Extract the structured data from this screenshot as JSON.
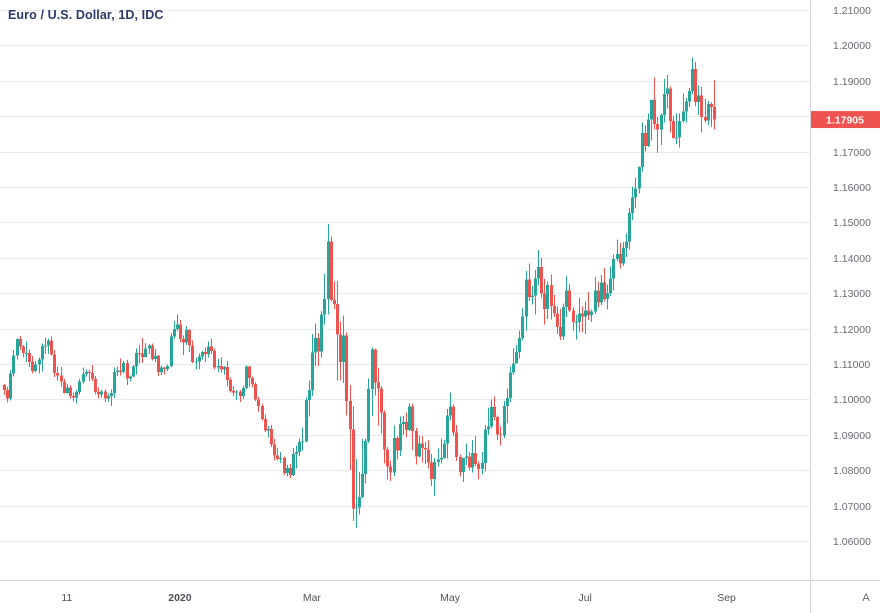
{
  "chart_data": {
    "type": "candlestick",
    "symbol_title": "Euro / U.S. Dollar, 1D, IDC",
    "symbol": "EURUSD",
    "interval": "1D",
    "exchange": "IDC",
    "last_price": "1.17905",
    "corner_label": "A",
    "price_axis_labels": [
      "1.21000",
      "1.20000",
      "1.19000",
      "1.18000",
      "1.17000",
      "1.16000",
      "1.15000",
      "1.14000",
      "1.13000",
      "1.12000",
      "1.11000",
      "1.10000",
      "1.09000",
      "1.08000",
      "1.07000",
      "1.06000"
    ],
    "ylim": [
      1.04898,
      1.21282
    ],
    "time_ticks": [
      {
        "label": "11",
        "index": 20,
        "bold": false
      },
      {
        "label": "2020",
        "index": 56,
        "bold": true
      },
      {
        "label": "Mar",
        "index": 98,
        "bold": false
      },
      {
        "label": "May",
        "index": 142,
        "bold": false
      },
      {
        "label": "Jul",
        "index": 185,
        "bold": false
      },
      {
        "label": "Sep",
        "index": 230,
        "bold": false
      }
    ],
    "colors": {
      "up": "#26a69a",
      "down": "#ef5350",
      "badge": "#ef5350",
      "badge_text": "#ffffff",
      "grid": "#e7eaf0",
      "axis_border": "#d3d6dd",
      "axis_text": "#676b74",
      "time_text": "#50535a",
      "legend": "#2c3a6b",
      "background": "#ffffff"
    },
    "candles": [
      [
        1.104,
        1.1043,
        1.1013,
        1.1026
      ],
      [
        1.1026,
        1.1035,
        1.0991,
        1.1003
      ],
      [
        1.1003,
        1.1083,
        1.0997,
        1.1073
      ],
      [
        1.1073,
        1.114,
        1.1065,
        1.1124
      ],
      [
        1.1124,
        1.1172,
        1.1112,
        1.117
      ],
      [
        1.117,
        1.1179,
        1.1139,
        1.115
      ],
      [
        1.115,
        1.1154,
        1.1118,
        1.1131
      ],
      [
        1.1131,
        1.1163,
        1.1106,
        1.1131
      ],
      [
        1.1131,
        1.1141,
        1.1092,
        1.1105
      ],
      [
        1.1105,
        1.1123,
        1.1073,
        1.108
      ],
      [
        1.108,
        1.1108,
        1.1076,
        1.1099
      ],
      [
        1.1099,
        1.1118,
        1.1073,
        1.1113
      ],
      [
        1.1113,
        1.1158,
        1.1079,
        1.1151
      ],
      [
        1.1151,
        1.1175,
        1.1128,
        1.1152
      ],
      [
        1.1152,
        1.1172,
        1.1128,
        1.1166
      ],
      [
        1.1166,
        1.1177,
        1.1124,
        1.1127
      ],
      [
        1.1127,
        1.114,
        1.1063,
        1.1074
      ],
      [
        1.1074,
        1.1093,
        1.1054,
        1.1068
      ],
      [
        1.1068,
        1.1092,
        1.1035,
        1.105
      ],
      [
        1.105,
        1.1058,
        1.1017,
        1.1018
      ],
      [
        1.1018,
        1.1043,
        1.1016,
        1.1033
      ],
      [
        1.1033,
        1.104,
        1.1002,
        1.101
      ],
      [
        1.101,
        1.1019,
        1.0994,
        1.1006
      ],
      [
        1.1006,
        1.1027,
        1.0989,
        1.1021
      ],
      [
        1.1021,
        1.1057,
        1.1014,
        1.1051
      ],
      [
        1.1051,
        1.109,
        1.1045,
        1.1072
      ],
      [
        1.1072,
        1.1085,
        1.1064,
        1.1078
      ],
      [
        1.1078,
        1.1083,
        1.1052,
        1.1074
      ],
      [
        1.1074,
        1.1097,
        1.1052,
        1.1058
      ],
      [
        1.1058,
        1.1066,
        1.1014,
        1.1021
      ],
      [
        1.1021,
        1.1033,
        1.1003,
        1.1014
      ],
      [
        1.1014,
        1.1026,
        1.1006,
        1.1022
      ],
      [
        1.1022,
        1.1028,
        1.0992,
        1.1003
      ],
      [
        1.1003,
        1.1016,
        1.0994,
        1.1009
      ],
      [
        1.1009,
        1.1028,
        1.0981,
        1.1018
      ],
      [
        1.1018,
        1.109,
        1.1004,
        1.1078
      ],
      [
        1.1078,
        1.1093,
        1.1066,
        1.1081
      ],
      [
        1.1081,
        1.1116,
        1.1067,
        1.1077
      ],
      [
        1.1077,
        1.1109,
        1.1073,
        1.1103
      ],
      [
        1.1103,
        1.1111,
        1.104,
        1.1059
      ],
      [
        1.1059,
        1.1068,
        1.1051,
        1.1064
      ],
      [
        1.1064,
        1.1097,
        1.1063,
        1.1093
      ],
      [
        1.1093,
        1.1144,
        1.107,
        1.1131
      ],
      [
        1.1131,
        1.1154,
        1.1102,
        1.113
      ],
      [
        1.113,
        1.1173,
        1.1103,
        1.112
      ],
      [
        1.112,
        1.1159,
        1.1118,
        1.1144
      ],
      [
        1.1144,
        1.1156,
        1.1128,
        1.1152
      ],
      [
        1.1152,
        1.1158,
        1.111,
        1.1114
      ],
      [
        1.1114,
        1.1143,
        1.1106,
        1.1122
      ],
      [
        1.1122,
        1.1126,
        1.1066,
        1.1078
      ],
      [
        1.1078,
        1.1096,
        1.1069,
        1.109
      ],
      [
        1.109,
        1.1092,
        1.107,
        1.1086
      ],
      [
        1.1086,
        1.1098,
        1.108,
        1.1094
      ],
      [
        1.1094,
        1.1188,
        1.1092,
        1.1177
      ],
      [
        1.1177,
        1.1221,
        1.1172,
        1.1199
      ],
      [
        1.1199,
        1.124,
        1.1193,
        1.1212
      ],
      [
        1.1212,
        1.1224,
        1.1162,
        1.1171
      ],
      [
        1.1171,
        1.118,
        1.1125,
        1.116
      ],
      [
        1.116,
        1.1207,
        1.1154,
        1.1196
      ],
      [
        1.1196,
        1.1199,
        1.1134,
        1.1152
      ],
      [
        1.1152,
        1.1166,
        1.1103,
        1.1105
      ],
      [
        1.1105,
        1.1119,
        1.1085,
        1.1107
      ],
      [
        1.1107,
        1.1129,
        1.1086,
        1.1121
      ],
      [
        1.1121,
        1.1136,
        1.1113,
        1.1134
      ],
      [
        1.1134,
        1.1146,
        1.1105,
        1.1128
      ],
      [
        1.1128,
        1.1163,
        1.1119,
        1.115
      ],
      [
        1.115,
        1.1172,
        1.1128,
        1.1136
      ],
      [
        1.1136,
        1.1144,
        1.1085,
        1.109
      ],
      [
        1.109,
        1.1114,
        1.1077,
        1.1095
      ],
      [
        1.1095,
        1.1118,
        1.1076,
        1.1084
      ],
      [
        1.1084,
        1.1095,
        1.1069,
        1.1092
      ],
      [
        1.1092,
        1.1109,
        1.1036,
        1.1055
      ],
      [
        1.1055,
        1.1062,
        1.102,
        1.1024
      ],
      [
        1.1024,
        1.1038,
        1.101,
        1.1019
      ],
      [
        1.1019,
        1.1026,
        1.0998,
        1.1022
      ],
      [
        1.1022,
        1.1027,
        1.0992,
        1.101
      ],
      [
        1.101,
        1.1039,
        1.1001,
        1.1032
      ],
      [
        1.1032,
        1.1096,
        1.103,
        1.1093
      ],
      [
        1.1093,
        1.1094,
        1.1035,
        1.106
      ],
      [
        1.106,
        1.1065,
        1.1033,
        1.1044
      ],
      [
        1.1044,
        1.1048,
        1.0995,
        1.1
      ],
      [
        1.1,
        1.1007,
        1.0964,
        1.0981
      ],
      [
        1.0981,
        1.0988,
        1.0941,
        1.0945
      ],
      [
        1.0945,
        1.0958,
        1.0908,
        1.0912
      ],
      [
        1.0912,
        1.0925,
        1.0892,
        1.0917
      ],
      [
        1.0917,
        1.0927,
        1.0865,
        1.0873
      ],
      [
        1.0873,
        1.0888,
        1.0827,
        1.0841
      ],
      [
        1.0841,
        1.0862,
        1.0828,
        1.0831
      ],
      [
        1.0831,
        1.0852,
        1.082,
        1.0835
      ],
      [
        1.0835,
        1.0839,
        1.0786,
        1.0792
      ],
      [
        1.0792,
        1.0815,
        1.0782,
        1.0806
      ],
      [
        1.0806,
        1.0818,
        1.0778,
        1.0786
      ],
      [
        1.0786,
        1.0862,
        1.0783,
        1.0846
      ],
      [
        1.0846,
        1.087,
        1.0805,
        1.0852
      ],
      [
        1.0852,
        1.089,
        1.084,
        1.088
      ],
      [
        1.088,
        1.092,
        1.0855,
        1.0881
      ],
      [
        1.0881,
        1.1006,
        1.0878,
        1.0998
      ],
      [
        1.0998,
        1.1053,
        1.0951,
        1.1026
      ],
      [
        1.1026,
        1.1185,
        1.101,
        1.1133
      ],
      [
        1.1133,
        1.1214,
        1.1095,
        1.1173
      ],
      [
        1.1173,
        1.1187,
        1.1095,
        1.1135
      ],
      [
        1.1135,
        1.1249,
        1.1119,
        1.124
      ],
      [
        1.124,
        1.1355,
        1.1212,
        1.1284
      ],
      [
        1.1284,
        1.1495,
        1.124,
        1.1446
      ],
      [
        1.1446,
        1.146,
        1.1277,
        1.1281
      ],
      [
        1.1281,
        1.1333,
        1.1256,
        1.127
      ],
      [
        1.127,
        1.1334,
        1.1054,
        1.1184
      ],
      [
        1.1184,
        1.122,
        1.1054,
        1.1105
      ],
      [
        1.1105,
        1.1237,
        1.1046,
        1.118
      ],
      [
        1.118,
        1.1189,
        1.0955,
        1.0995
      ],
      [
        1.0995,
        1.104,
        1.0801,
        1.0915
      ],
      [
        1.0915,
        1.0982,
        1.0656,
        1.0692
      ],
      [
        1.0692,
        1.0831,
        1.0636,
        1.0695
      ],
      [
        1.0695,
        1.0795,
        1.0675,
        1.0724
      ],
      [
        1.0724,
        1.0888,
        1.0722,
        1.0789
      ],
      [
        1.0789,
        1.089,
        1.0762,
        1.0883
      ],
      [
        1.0883,
        1.1059,
        1.0877,
        1.103
      ],
      [
        1.103,
        1.1147,
        1.0953,
        1.1141
      ],
      [
        1.1141,
        1.1144,
        1.1011,
        1.1047
      ],
      [
        1.1047,
        1.1088,
        1.0926,
        1.1031
      ],
      [
        1.1031,
        1.1038,
        1.0903,
        1.0963
      ],
      [
        1.0963,
        1.0968,
        1.0819,
        1.0858
      ],
      [
        1.0858,
        1.0865,
        1.0773,
        1.081
      ],
      [
        1.081,
        1.0827,
        1.0769,
        1.0793
      ],
      [
        1.0793,
        1.0926,
        1.0784,
        1.0891
      ],
      [
        1.0891,
        1.0897,
        1.083,
        1.0856
      ],
      [
        1.0856,
        1.0952,
        1.084,
        1.093
      ],
      [
        1.093,
        1.0953,
        1.0899,
        1.0936
      ],
      [
        1.0936,
        1.0963,
        1.0893,
        1.0914
      ],
      [
        1.0914,
        1.099,
        1.0911,
        1.098
      ],
      [
        1.098,
        1.0988,
        1.0857,
        1.0911
      ],
      [
        1.0911,
        1.0919,
        1.0816,
        1.0838
      ],
      [
        1.0838,
        1.0898,
        1.0836,
        1.0875
      ],
      [
        1.0875,
        1.0897,
        1.0822,
        1.0863
      ],
      [
        1.0863,
        1.0879,
        1.0817,
        1.0858
      ],
      [
        1.0858,
        1.0885,
        1.0805,
        1.0822
      ],
      [
        1.0822,
        1.0846,
        1.0756,
        1.0775
      ],
      [
        1.0775,
        1.0835,
        1.0727,
        1.0823
      ],
      [
        1.0823,
        1.0861,
        1.081,
        1.083
      ],
      [
        1.083,
        1.0889,
        1.0819,
        1.0834
      ],
      [
        1.0834,
        1.0885,
        1.0833,
        1.0875
      ],
      [
        1.0875,
        1.0973,
        1.0833,
        1.0955
      ],
      [
        1.0955,
        1.1019,
        1.094,
        1.098
      ],
      [
        1.098,
        1.0985,
        1.0896,
        1.0907
      ],
      [
        1.0907,
        1.0927,
        1.0826,
        1.0837
      ],
      [
        1.0837,
        1.0845,
        1.0782,
        1.0795
      ],
      [
        1.0795,
        1.0835,
        1.0766,
        1.0834
      ],
      [
        1.0834,
        1.0876,
        1.0815,
        1.0839
      ],
      [
        1.0839,
        1.0851,
        1.08,
        1.0807
      ],
      [
        1.0807,
        1.0885,
        1.0794,
        1.0849
      ],
      [
        1.0849,
        1.0897,
        1.0812,
        1.0817
      ],
      [
        1.0817,
        1.0824,
        1.0774,
        1.0803
      ],
      [
        1.0803,
        1.0851,
        1.0789,
        1.082
      ],
      [
        1.082,
        1.0927,
        1.0797,
        1.0915
      ],
      [
        1.0915,
        1.0976,
        1.0899,
        1.0924
      ],
      [
        1.0924,
        1.0999,
        1.0918,
        1.0978
      ],
      [
        1.0978,
        1.1008,
        1.094,
        1.095
      ],
      [
        1.095,
        1.0955,
        1.0885,
        1.0901
      ],
      [
        1.0901,
        1.0924,
        1.087,
        1.0898
      ],
      [
        1.0898,
        1.0996,
        1.0891,
        1.0982
      ],
      [
        1.0982,
        1.1031,
        1.0934,
        1.1004
      ],
      [
        1.1004,
        1.1093,
        1.0992,
        1.1076
      ],
      [
        1.1076,
        1.1145,
        1.1069,
        1.1101
      ],
      [
        1.1101,
        1.1154,
        1.1101,
        1.1134
      ],
      [
        1.1134,
        1.1195,
        1.1115,
        1.1173
      ],
      [
        1.1173,
        1.1258,
        1.1167,
        1.1234
      ],
      [
        1.1234,
        1.1362,
        1.1194,
        1.1338
      ],
      [
        1.1338,
        1.1384,
        1.1278,
        1.1289
      ],
      [
        1.1289,
        1.132,
        1.1268,
        1.1294
      ],
      [
        1.1294,
        1.1366,
        1.124,
        1.1341
      ],
      [
        1.1341,
        1.1422,
        1.1322,
        1.1374
      ],
      [
        1.1374,
        1.14,
        1.1288,
        1.1299
      ],
      [
        1.1299,
        1.134,
        1.1212,
        1.1255
      ],
      [
        1.1255,
        1.1333,
        1.1227,
        1.1323
      ],
      [
        1.1323,
        1.1353,
        1.1226,
        1.1264
      ],
      [
        1.1264,
        1.1295,
        1.1233,
        1.1243
      ],
      [
        1.1243,
        1.1262,
        1.1185,
        1.1205
      ],
      [
        1.1205,
        1.1255,
        1.1168,
        1.1177
      ],
      [
        1.1177,
        1.1271,
        1.1168,
        1.1261
      ],
      [
        1.1261,
        1.1349,
        1.1233,
        1.1308
      ],
      [
        1.1308,
        1.1326,
        1.1247,
        1.1251
      ],
      [
        1.1251,
        1.1261,
        1.1194,
        1.1218
      ],
      [
        1.1218,
        1.1239,
        1.1169,
        1.1219
      ],
      [
        1.1219,
        1.1288,
        1.1191,
        1.1242
      ],
      [
        1.1242,
        1.1262,
        1.119,
        1.1234
      ],
      [
        1.1234,
        1.1276,
        1.1185,
        1.1251
      ],
      [
        1.1251,
        1.1303,
        1.1224,
        1.1239
      ],
      [
        1.1239,
        1.1254,
        1.1219,
        1.1248
      ],
      [
        1.1248,
        1.1346,
        1.1241,
        1.1308
      ],
      [
        1.1308,
        1.1333,
        1.1259,
        1.1274
      ],
      [
        1.1274,
        1.1352,
        1.1266,
        1.133
      ],
      [
        1.133,
        1.1371,
        1.1277,
        1.1284
      ],
      [
        1.1284,
        1.1325,
        1.1254,
        1.13
      ],
      [
        1.13,
        1.1375,
        1.1292,
        1.1341
      ],
      [
        1.1341,
        1.1409,
        1.1308,
        1.1396
      ],
      [
        1.1396,
        1.1452,
        1.139,
        1.1411
      ],
      [
        1.1411,
        1.1442,
        1.137,
        1.1384
      ],
      [
        1.1384,
        1.1444,
        1.1377,
        1.1427
      ],
      [
        1.1427,
        1.1468,
        1.1402,
        1.1446
      ],
      [
        1.1446,
        1.154,
        1.1423,
        1.1527
      ],
      [
        1.1527,
        1.1601,
        1.1507,
        1.157
      ],
      [
        1.157,
        1.1627,
        1.154,
        1.1596
      ],
      [
        1.1596,
        1.1658,
        1.1581,
        1.1656
      ],
      [
        1.1656,
        1.1782,
        1.1644,
        1.1752
      ],
      [
        1.1752,
        1.1773,
        1.17,
        1.1716
      ],
      [
        1.1716,
        1.1807,
        1.1713,
        1.1791
      ],
      [
        1.1791,
        1.1847,
        1.1732,
        1.1846
      ],
      [
        1.1846,
        1.1909,
        1.1762,
        1.1778
      ],
      [
        1.1778,
        1.1797,
        1.1696,
        1.1762
      ],
      [
        1.1762,
        1.1807,
        1.1719,
        1.1803
      ],
      [
        1.1803,
        1.1905,
        1.1782,
        1.1862
      ],
      [
        1.1862,
        1.1916,
        1.1822,
        1.1878
      ],
      [
        1.1878,
        1.1884,
        1.1754,
        1.1787
      ],
      [
        1.1787,
        1.18,
        1.1737,
        1.1738
      ],
      [
        1.1738,
        1.1808,
        1.1722,
        1.174
      ],
      [
        1.174,
        1.1807,
        1.1711,
        1.1786
      ],
      [
        1.1786,
        1.1864,
        1.1782,
        1.1813
      ],
      [
        1.1813,
        1.1851,
        1.1782,
        1.1842
      ],
      [
        1.1842,
        1.188,
        1.1826,
        1.1871
      ],
      [
        1.1871,
        1.1966,
        1.1863,
        1.1933
      ],
      [
        1.1933,
        1.1953,
        1.1829,
        1.184
      ],
      [
        1.184,
        1.1887,
        1.1804,
        1.1859
      ],
      [
        1.1859,
        1.1882,
        1.1754,
        1.1797
      ],
      [
        1.1797,
        1.185,
        1.1782,
        1.1788
      ],
      [
        1.1788,
        1.1843,
        1.1773,
        1.1834
      ],
      [
        1.1834,
        1.184,
        1.177,
        1.1826
      ],
      [
        1.1826,
        1.1902,
        1.1763,
        1.17905
      ]
    ]
  }
}
